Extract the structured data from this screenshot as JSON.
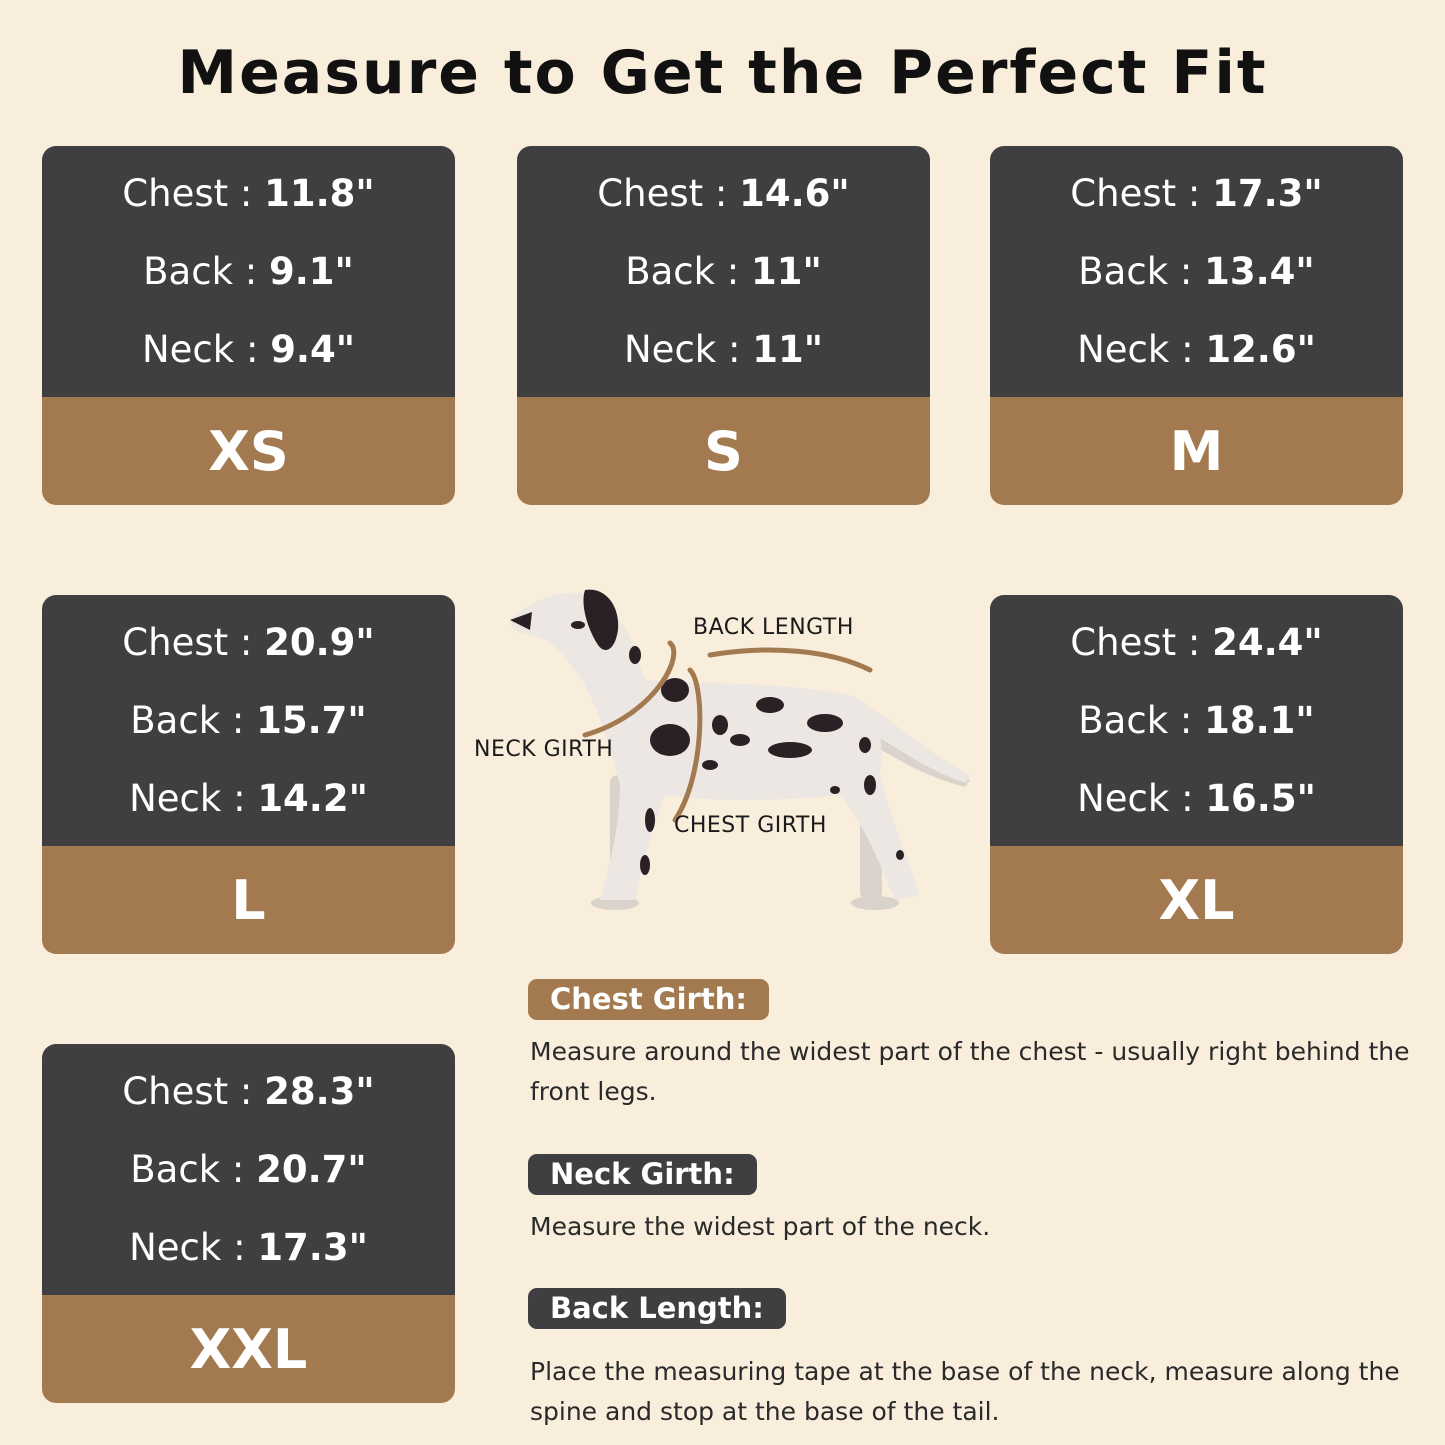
{
  "title": "Measure to Get the Perfect Fit",
  "sizes": [
    {
      "size": "XS",
      "chest_label": "Chest :",
      "chest": "11.8\"",
      "back_label": "Back :",
      "back": "9.1\"",
      "neck_label": "Neck :",
      "neck": "9.4\""
    },
    {
      "size": "S",
      "chest_label": "Chest :",
      "chest": "14.6\"",
      "back_label": "Back :",
      "back": "11\"",
      "neck_label": "Neck :",
      "neck": "11\""
    },
    {
      "size": "M",
      "chest_label": "Chest :",
      "chest": "17.3\"",
      "back_label": "Back :",
      "back": "13.4\"",
      "neck_label": "Neck :",
      "neck": "12.6\""
    },
    {
      "size": "L",
      "chest_label": "Chest :",
      "chest": "20.9\"",
      "back_label": "Back :",
      "back": "15.7\"",
      "neck_label": "Neck :",
      "neck": "14.2\""
    },
    {
      "size": "XL",
      "chest_label": "Chest :",
      "chest": "24.4\"",
      "back_label": "Back :",
      "back": "18.1\"",
      "neck_label": "Neck :",
      "neck": "16.5\""
    },
    {
      "size": "XXL",
      "chest_label": "Chest :",
      "chest": "28.3\"",
      "back_label": "Back :",
      "back": "20.7\"",
      "neck_label": "Neck :",
      "neck": "17.3\""
    }
  ],
  "diagram": {
    "back_length": "BACK LENGTH",
    "neck_girth": "NECK GIRTH",
    "chest_girth": "CHEST GIRTH"
  },
  "guide": [
    {
      "heading": "Chest Girth:",
      "text": "Measure around the widest part of the chest - usually right behind the front legs."
    },
    {
      "heading": "Neck Girth:",
      "text": "Measure the widest part of the neck."
    },
    {
      "heading": "Back Length:",
      "text": "Place the measuring tape at the base of the neck, measure along the spine and stop at the base of the tail."
    }
  ],
  "colors": {
    "background": "#f9eddc",
    "card_dark": "#3f3f42",
    "card_brown": "#a37a50"
  }
}
